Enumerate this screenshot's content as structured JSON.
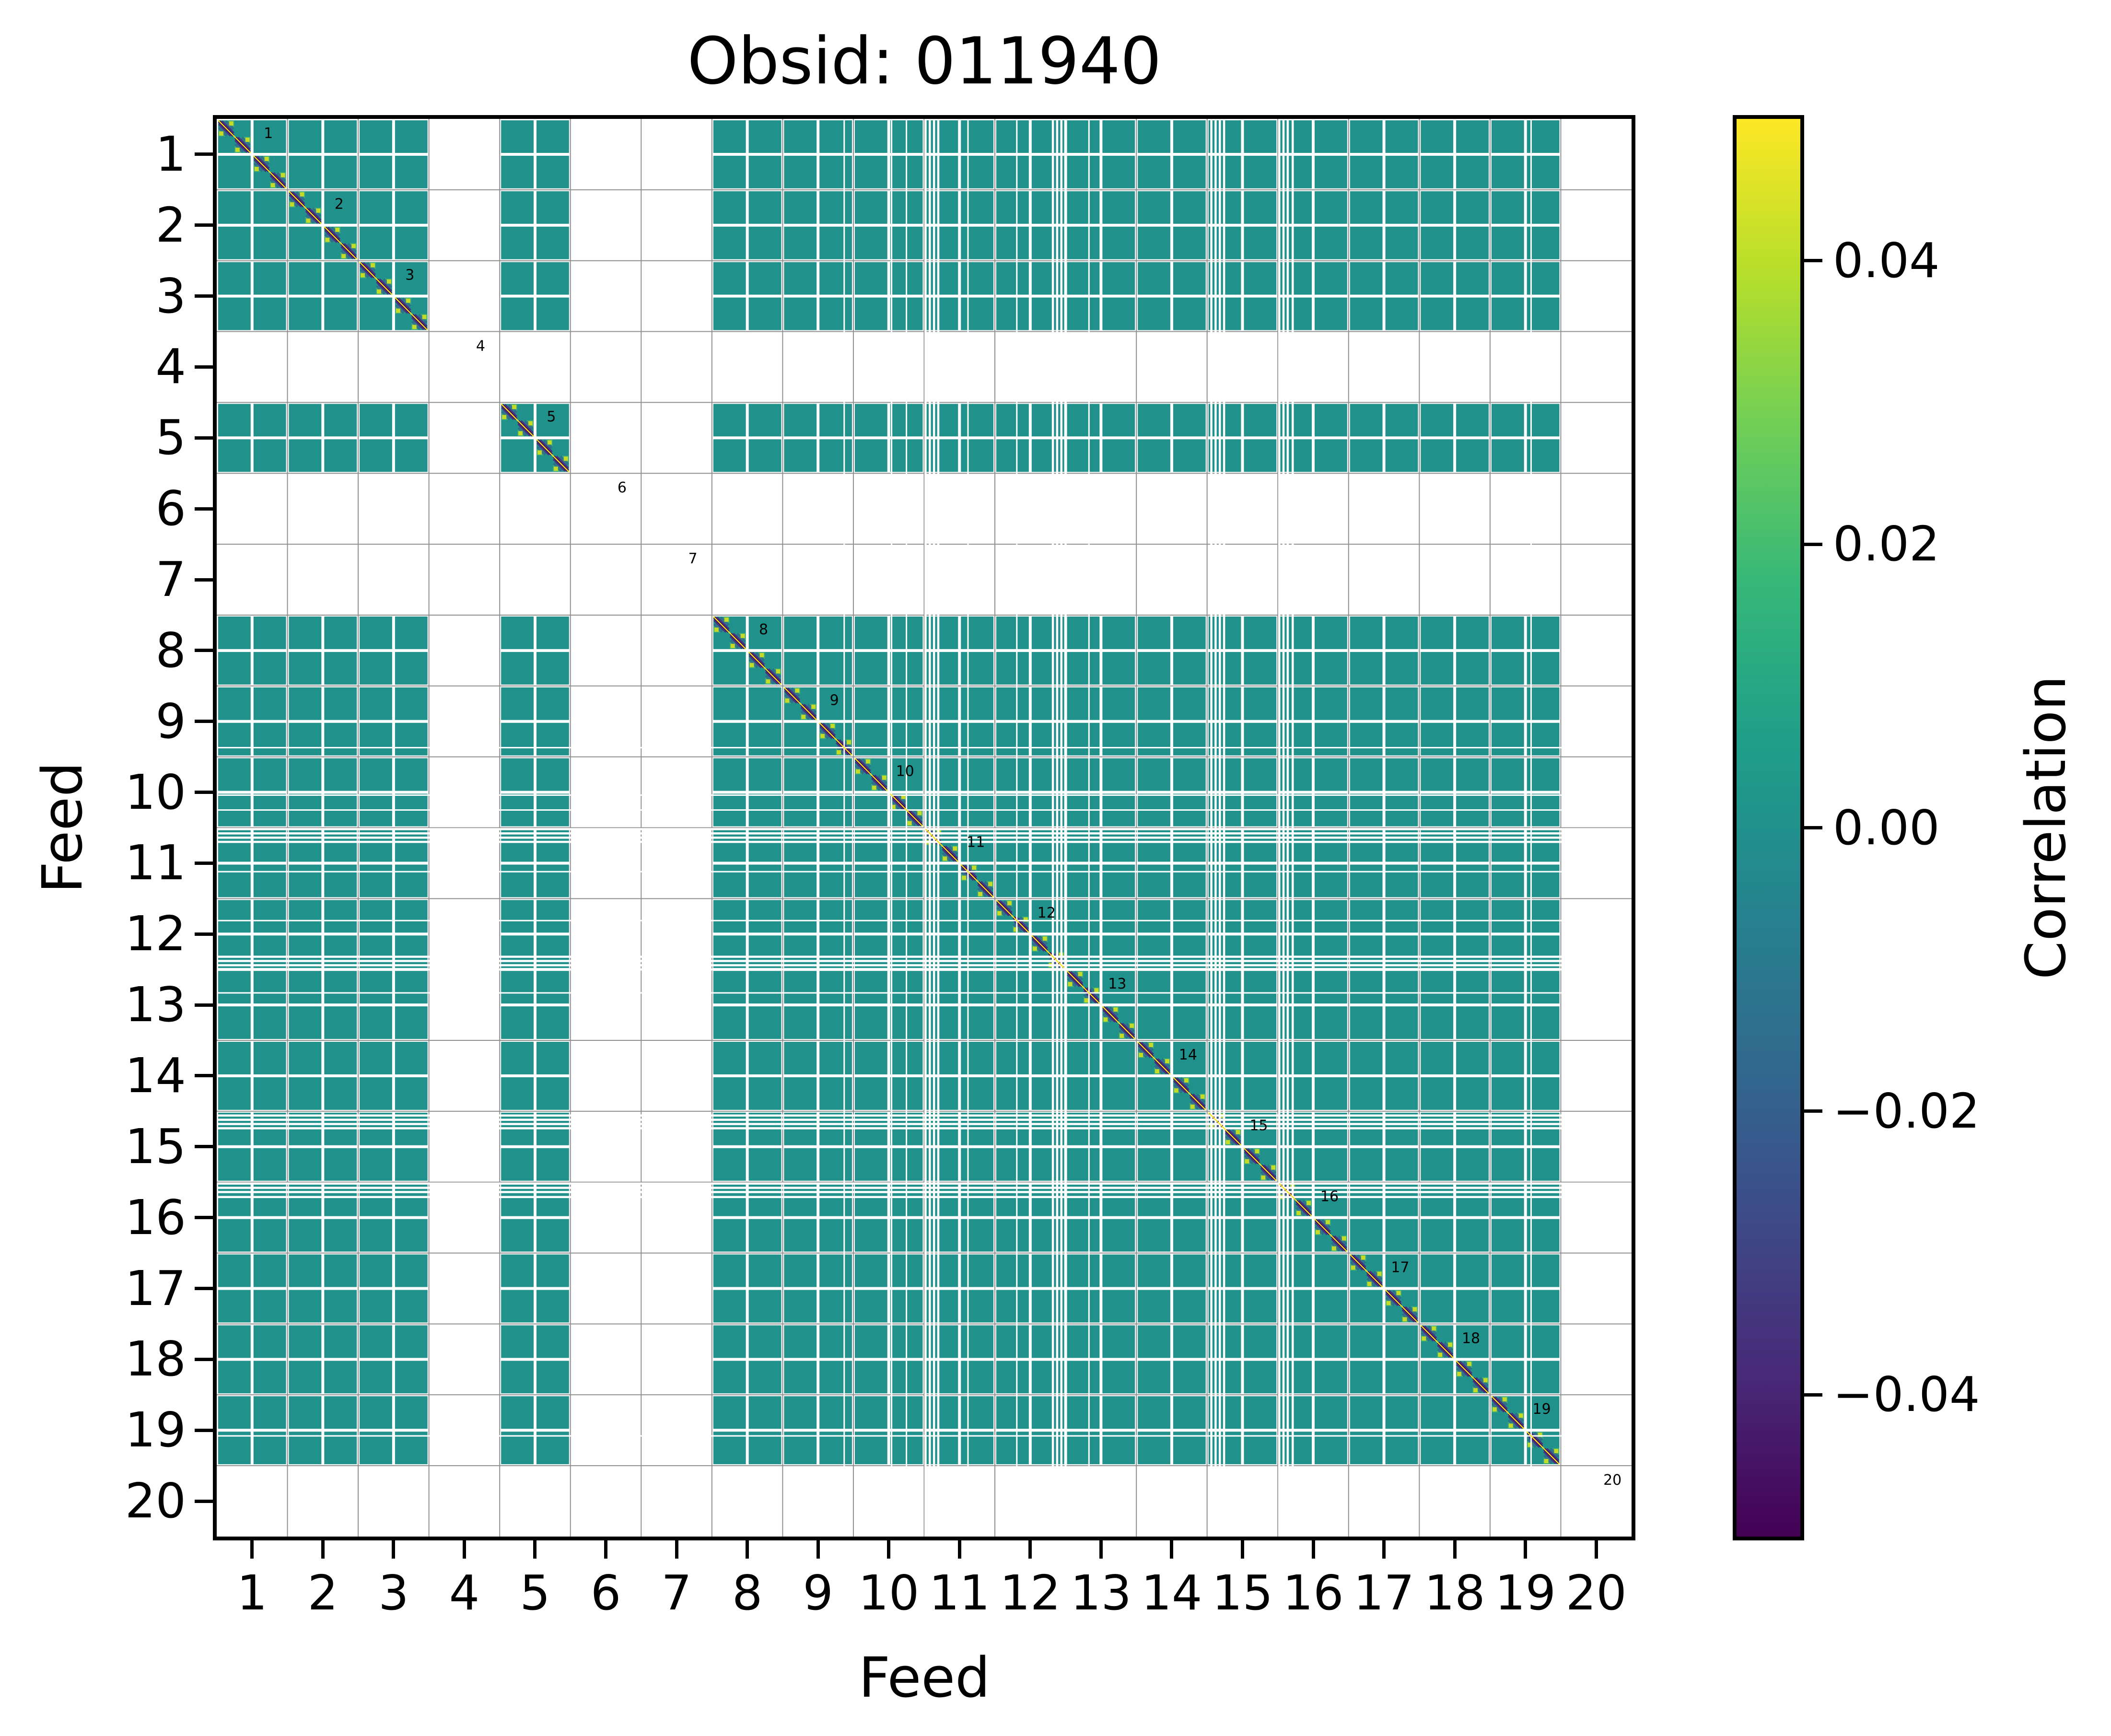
{
  "figure": {
    "title": "Obsid: 011940",
    "background_color": "#ffffff"
  },
  "axes": {
    "xlabel": "Feed",
    "ylabel": "Feed",
    "x_tick_labels": [
      "1",
      "2",
      "3",
      "4",
      "5",
      "6",
      "7",
      "8",
      "9",
      "10",
      "11",
      "12",
      "13",
      "14",
      "15",
      "16",
      "17",
      "18",
      "19",
      "20"
    ],
    "y_tick_labels": [
      "1",
      "2",
      "3",
      "4",
      "5",
      "6",
      "7",
      "8",
      "9",
      "10",
      "11",
      "12",
      "13",
      "14",
      "15",
      "16",
      "17",
      "18",
      "19",
      "20"
    ]
  },
  "colorbar": {
    "label": "Correlation",
    "vmin": -0.05,
    "vmax": 0.05,
    "tick_values": [
      0.04,
      0.02,
      0.0,
      -0.02,
      -0.04
    ],
    "tick_labels": [
      "0.04",
      "0.02",
      "0.00",
      "−0.02",
      "−0.04"
    ],
    "colormap": "viridis"
  },
  "chart_data": {
    "type": "heatmap",
    "title": "Obsid: 011940",
    "xlabel": "Feed",
    "ylabel": "Feed",
    "x_range": [
      1,
      20
    ],
    "y_range": [
      1,
      20
    ],
    "grid": "feed-boundary gridlines on",
    "legend_position": "colorbar right",
    "n_feeds": 20,
    "subcells_per_feed": 2,
    "present_feeds": [
      1,
      2,
      3,
      5,
      8,
      9,
      10,
      11,
      12,
      13,
      14,
      15,
      16,
      17,
      18,
      19
    ],
    "missing_feeds": [
      4,
      6,
      7,
      20
    ],
    "diagonal_labels": [
      "1",
      "2",
      "3",
      "4",
      "5",
      "6",
      "7",
      "8",
      "9",
      "10",
      "11",
      "12",
      "13",
      "14",
      "15",
      "16",
      "17",
      "18",
      "19",
      "20"
    ],
    "diag_label_offset": {
      "x": 0.73,
      "y": 0.205
    },
    "values": {
      "off_diagonal_correlation": 0.0,
      "diagonal_correlation": 1.0,
      "missing": "feeds 4, 6, 7 and 20 have no data (blank rows/columns)"
    },
    "flagged_channels": [
      {
        "u": 8.87,
        "w": 3
      },
      {
        "u": 9.54,
        "w": 3
      },
      {
        "u": 9.75,
        "w": 3
      },
      {
        "u": 10.02,
        "w": 4.5
      },
      {
        "u": 10.08,
        "w": 4.5
      },
      {
        "u": 10.14,
        "w": 4.5
      },
      {
        "u": 10.2,
        "w": 4.5
      },
      {
        "u": 10.62,
        "w": 3
      },
      {
        "u": 11.31,
        "w": 3
      },
      {
        "u": 11.82,
        "w": 4.5
      },
      {
        "u": 11.88,
        "w": 4.5
      },
      {
        "u": 11.94,
        "w": 4.5
      },
      {
        "u": 12.0,
        "w": 4.5
      },
      {
        "u": 12.33,
        "w": 3
      },
      {
        "u": 14.06,
        "w": 4.5
      },
      {
        "u": 14.12,
        "w": 4.5
      },
      {
        "u": 14.18,
        "w": 4.5
      },
      {
        "u": 14.24,
        "w": 4.5
      },
      {
        "u": 15.02,
        "w": 4.5
      },
      {
        "u": 15.08,
        "w": 4.5
      },
      {
        "u": 15.14,
        "w": 4.5
      },
      {
        "u": 15.21,
        "w": 4.5
      },
      {
        "u": 18.58,
        "w": 3
      }
    ],
    "colorbar": {
      "label": "Correlation",
      "vmin": -0.05,
      "vmax": 0.05,
      "tick_values": [
        0.04,
        0.02,
        0.0,
        -0.02,
        -0.04
      ],
      "tick_labels": [
        "0.04",
        "0.02",
        "0.00",
        "−0.02",
        "−0.04"
      ],
      "colormap": "viridis"
    },
    "colors": {
      "cell_teal": "#21918c",
      "grid_line": "#909090",
      "spine": "#000000",
      "background": "#ffffff",
      "streak_white": "#ffffff",
      "diag_core_purple": "#440154",
      "diag_mid_purple": "#46327e",
      "diag_outer_blue": "#33638f",
      "diag_yellow_line": "#f6e61f",
      "corner_bright": "#cade24",
      "corner_soft": "#58c765"
    },
    "viridis_stops": [
      "#440154",
      "#482878",
      "#3e4989",
      "#31688e",
      "#26828e",
      "#21918c",
      "#1f9e89",
      "#35b779",
      "#6ece58",
      "#b5de2b",
      "#fde725"
    ]
  }
}
